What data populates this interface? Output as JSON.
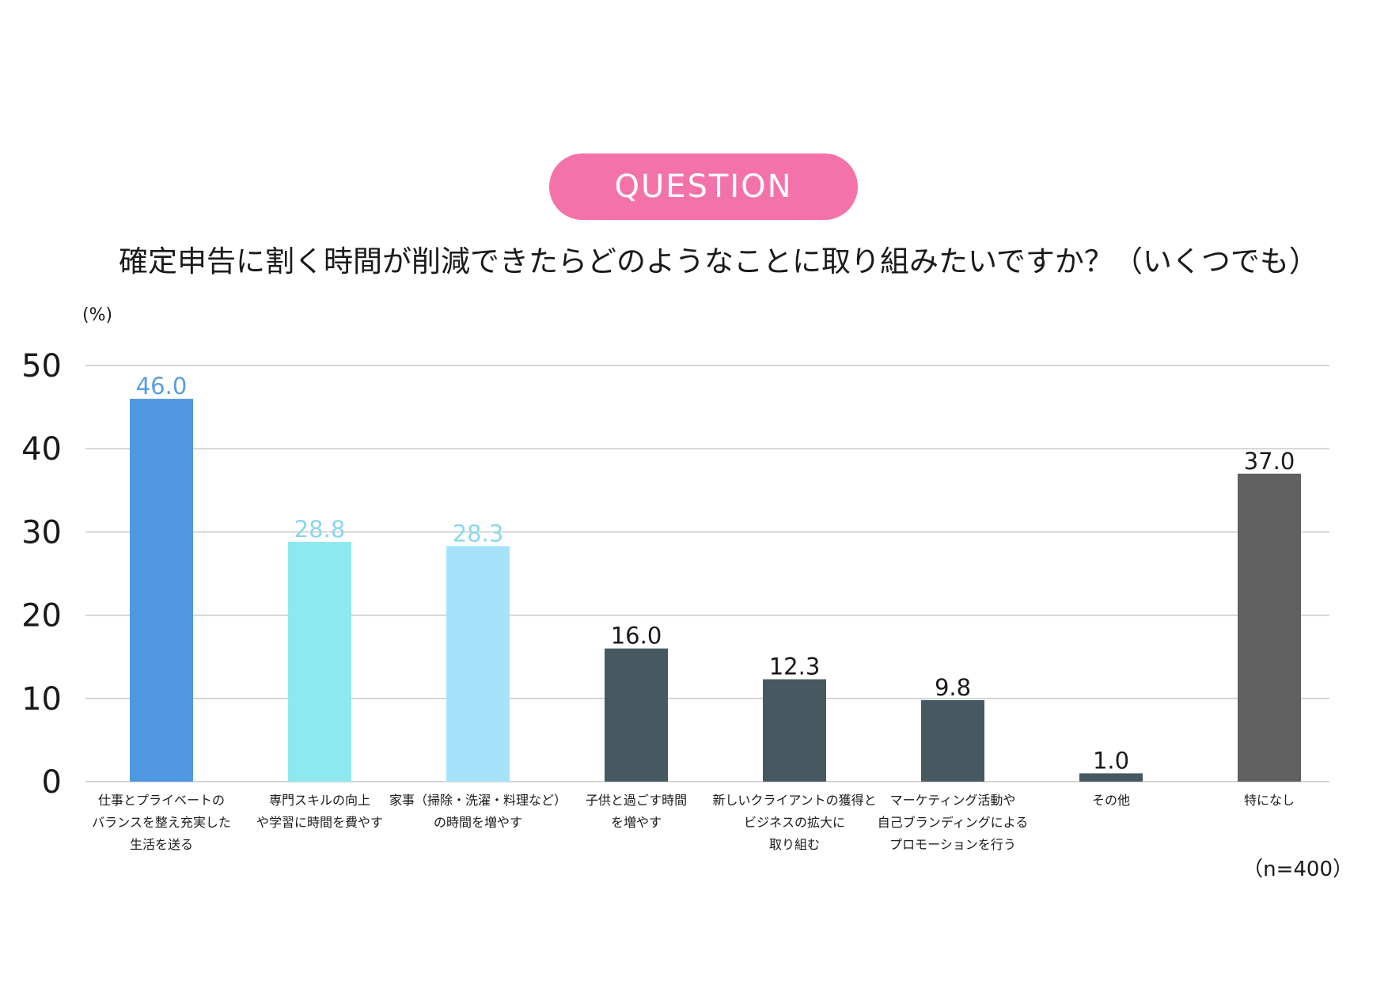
{
  "badge": {
    "label": "QUESTION"
  },
  "question": {
    "text": "確定申告に割く時間が削減できたらどのようなことに取り組みたいですか？（いくつでも）"
  },
  "footnote": {
    "sample_size": "（n=400）"
  },
  "colors": {
    "badge": "#f472aa",
    "bar_top": "#5097e2",
    "bar_second": "#8ee8f0",
    "bar_third": "#a6e3fb",
    "bar_dark": "#475960",
    "bar_none": "#606060",
    "label_top": "#5a9ee0",
    "label_light": "#8ad7ee",
    "label_dark": "#1a1a1a",
    "grid": "#c8c8c8"
  },
  "chart_data": {
    "type": "bar",
    "title": "",
    "ylabel": "(%)",
    "xlabel": "",
    "ylim": [
      0,
      50
    ],
    "yticks": [
      0,
      10,
      20,
      30,
      40,
      50
    ],
    "grid": true,
    "categories": [
      [
        "仕事とプライベートの",
        "バランスを整え充実した",
        "生活を送る"
      ],
      [
        "専門スキルの向上",
        "や学習に時間を費やす"
      ],
      [
        "家事（掃除・洗濯・料理など）",
        "の時間を増やす"
      ],
      [
        "子供と過ごす時間",
        "を増やす"
      ],
      [
        "新しいクライアントの獲得と",
        "ビジネスの拡大に",
        "取り組む"
      ],
      [
        "マーケティング活動や",
        "自己ブランディングによる",
        "プロモーションを行う"
      ],
      [
        "その他"
      ],
      [
        "特になし"
      ]
    ],
    "values": [
      46.0,
      28.8,
      28.3,
      16.0,
      12.3,
      9.8,
      1.0,
      37.0
    ],
    "value_labels": [
      "46.0",
      "28.8",
      "28.3",
      "16.0",
      "12.3",
      "9.8",
      "1.0",
      "37.0"
    ],
    "bar_colors": [
      "#5097e2",
      "#8ee8f0",
      "#a6e3fb",
      "#475960",
      "#475960",
      "#475960",
      "#475960",
      "#606060"
    ],
    "label_colors": [
      "#5a9ee0",
      "#8ad7ee",
      "#8ad7ee",
      "#1a1a1a",
      "#1a1a1a",
      "#1a1a1a",
      "#1a1a1a",
      "#1a1a1a"
    ]
  }
}
